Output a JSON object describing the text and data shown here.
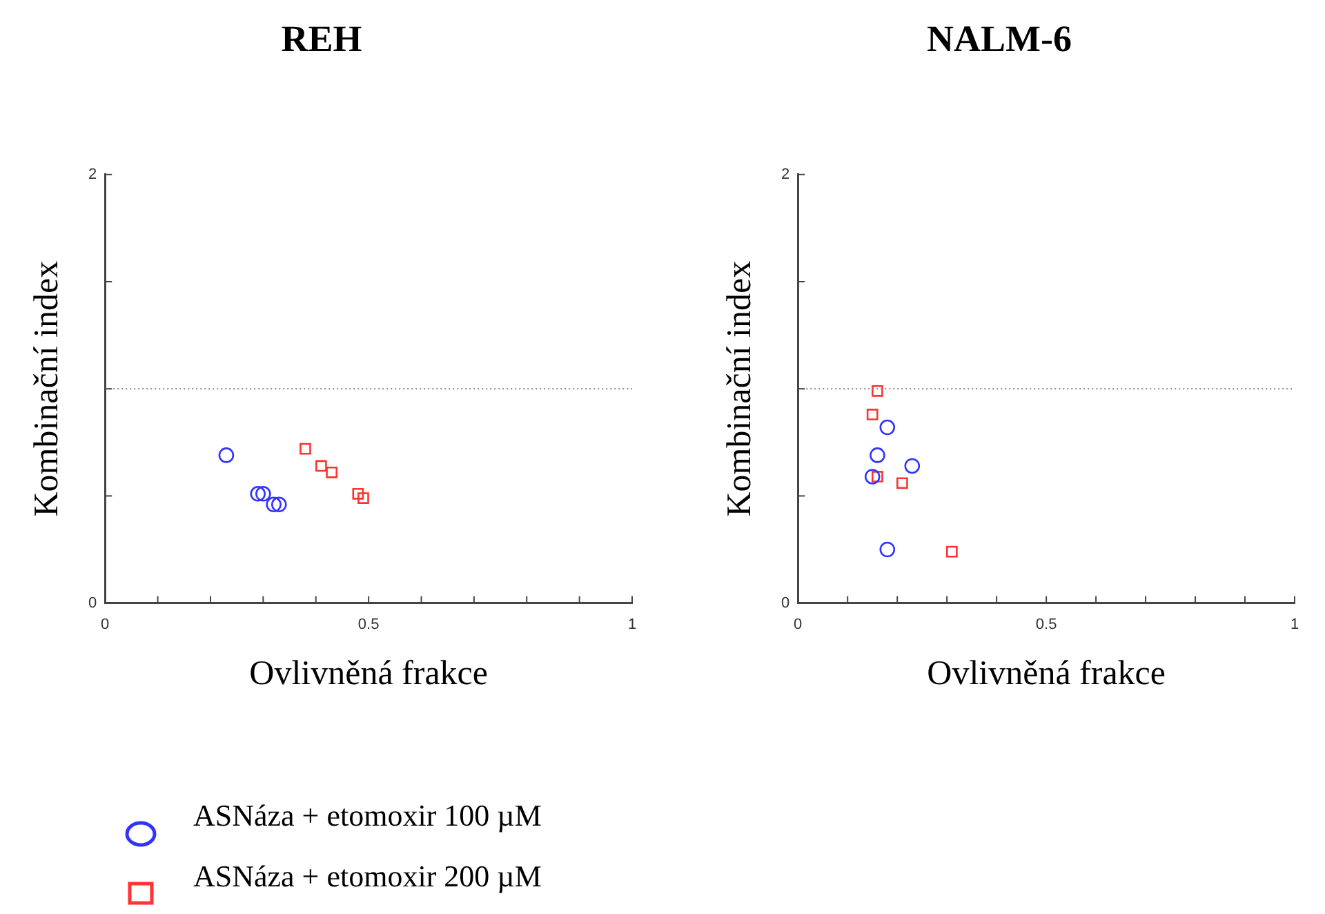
{
  "chart_data": [
    {
      "type": "scatter",
      "title": "REH",
      "xlabel": "Ovlivněná frakce",
      "ylabel": "Kombinační index",
      "xlim": [
        0,
        1
      ],
      "ylim": [
        0,
        2
      ],
      "xticks": [
        {
          "value": 0,
          "label": "0"
        },
        {
          "value": 0.1,
          "label": null
        },
        {
          "value": 0.2,
          "label": null
        },
        {
          "value": 0.3,
          "label": null
        },
        {
          "value": 0.4,
          "label": null
        },
        {
          "value": 0.5,
          "label": "0.5"
        },
        {
          "value": 0.6,
          "label": null
        },
        {
          "value": 0.7,
          "label": null
        },
        {
          "value": 0.8,
          "label": null
        },
        {
          "value": 0.9,
          "label": null
        },
        {
          "value": 1,
          "label": "1"
        }
      ],
      "yticks": [
        {
          "value": 0,
          "label": "0"
        },
        {
          "value": 0.5,
          "label": null
        },
        {
          "value": 1,
          "label": null
        },
        {
          "value": 1.5,
          "label": null
        },
        {
          "value": 2,
          "label": "2"
        }
      ],
      "legend": "bottom left",
      "ref_lines": [
        {
          "axis": "y",
          "value": 1,
          "color": "#808080",
          "line_style": "dotted"
        }
      ],
      "series": [
        {
          "name": "ASNáza + etomoxir 100 µM",
          "color": "#3333ff",
          "marker": "circle",
          "x": [
            0.23,
            0.29,
            0.3,
            0.32,
            0.33
          ],
          "values": [
            0.69,
            0.51,
            0.51,
            0.46,
            0.46
          ]
        },
        {
          "name": "ASNáza + etomoxir 200 µM",
          "color": "#ff3333",
          "marker": "square",
          "x": [
            0.38,
            0.41,
            0.43,
            0.48,
            0.49
          ],
          "values": [
            0.72,
            0.64,
            0.61,
            0.51,
            0.49
          ]
        }
      ]
    },
    {
      "type": "scatter",
      "title": "NALM-6",
      "xlabel": "Ovlivněná frakce",
      "ylabel": "Kombinační index",
      "xlim": [
        0,
        1
      ],
      "ylim": [
        0,
        2
      ],
      "xticks": [
        {
          "value": 0,
          "label": "0"
        },
        {
          "value": 0.1,
          "label": null
        },
        {
          "value": 0.2,
          "label": null
        },
        {
          "value": 0.3,
          "label": null
        },
        {
          "value": 0.4,
          "label": null
        },
        {
          "value": 0.5,
          "label": "0.5"
        },
        {
          "value": 0.6,
          "label": null
        },
        {
          "value": 0.7,
          "label": null
        },
        {
          "value": 0.8,
          "label": null
        },
        {
          "value": 0.9,
          "label": null
        },
        {
          "value": 1,
          "label": "1"
        }
      ],
      "yticks": [
        {
          "value": 0,
          "label": "0"
        },
        {
          "value": 0.5,
          "label": null
        },
        {
          "value": 1,
          "label": null
        },
        {
          "value": 1.5,
          "label": null
        },
        {
          "value": 2,
          "label": "2"
        }
      ],
      "ref_lines": [
        {
          "axis": "y",
          "value": 1,
          "color": "#808080",
          "line_style": "dotted"
        }
      ],
      "series": [
        {
          "color": "#3333ff",
          "marker": "circle",
          "x": [
            0.18,
            0.16,
            0.23,
            0.15,
            0.18
          ],
          "values": [
            0.82,
            0.69,
            0.64,
            0.59,
            0.25
          ]
        },
        {
          "color": "#ff3333",
          "marker": "square",
          "x": [
            0.16,
            0.15,
            0.16,
            0.21,
            0.31
          ],
          "values": [
            0.99,
            0.88,
            0.59,
            0.56,
            0.24
          ]
        }
      ]
    }
  ]
}
